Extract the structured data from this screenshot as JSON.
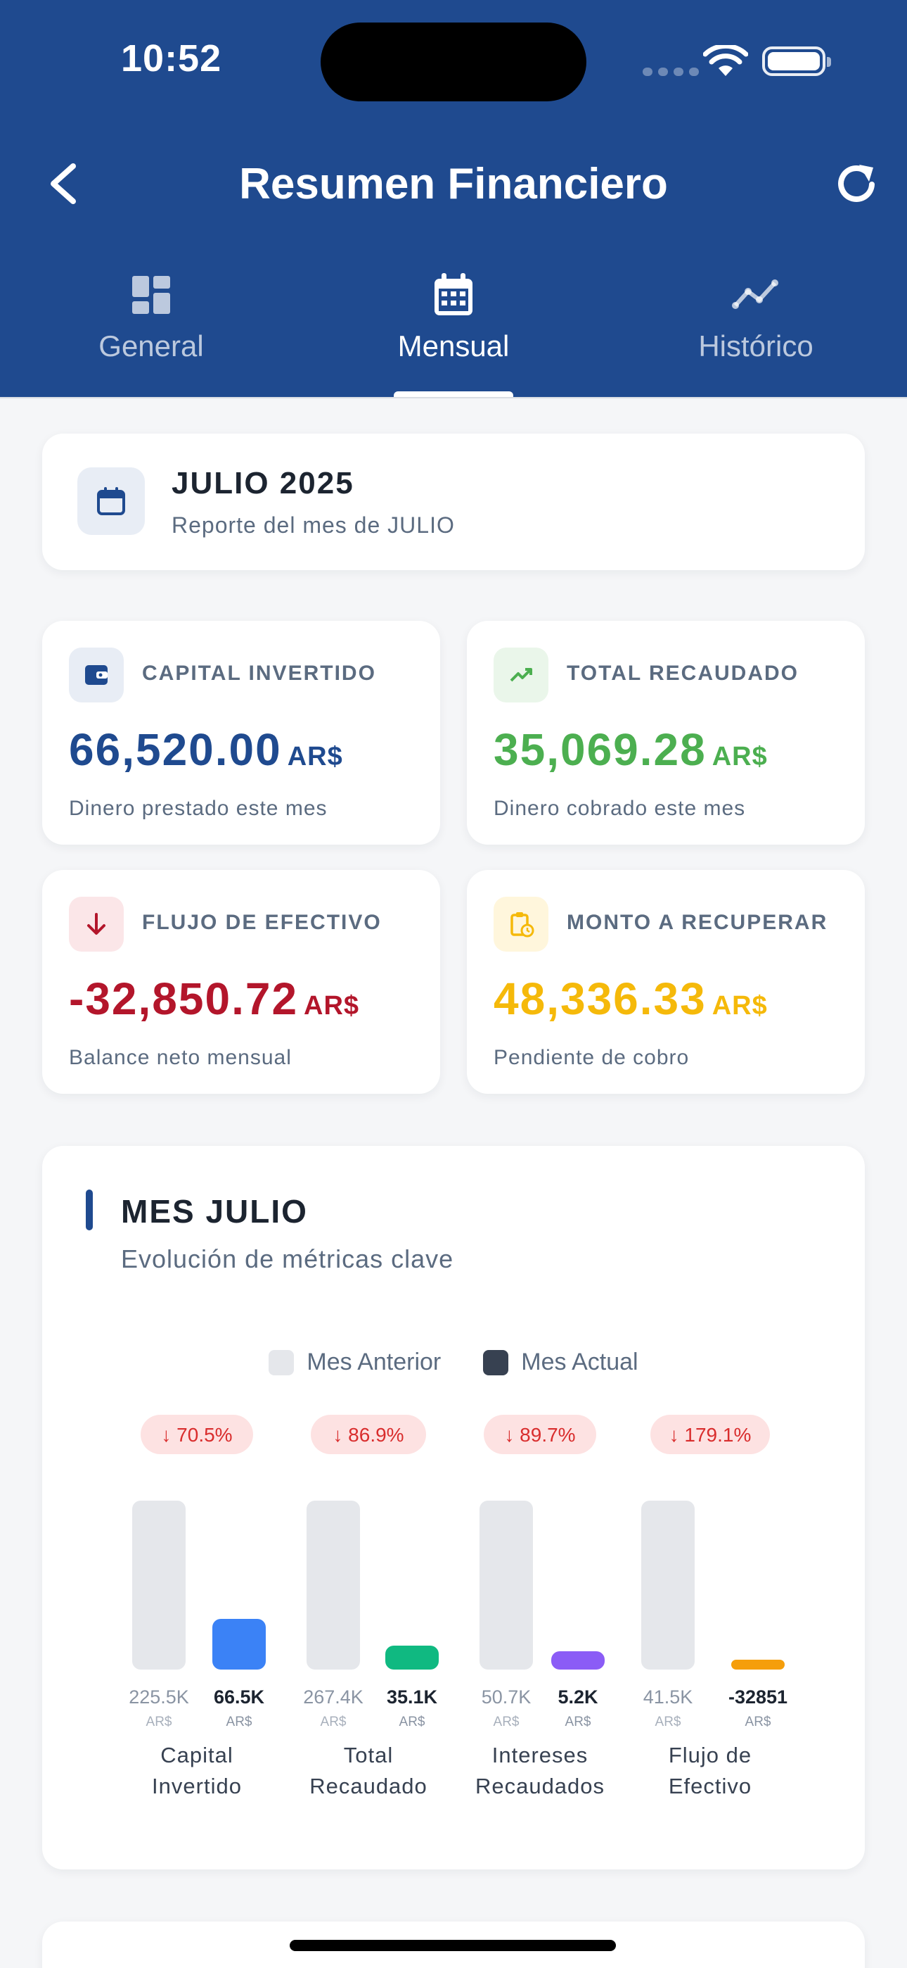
{
  "status": {
    "time": "10:52"
  },
  "header": {
    "title": "Resumen Financiero",
    "tabs": [
      {
        "label": "General",
        "icon": "dashboard-icon",
        "active": false
      },
      {
        "label": "Mensual",
        "icon": "calendar-icon",
        "active": true
      },
      {
        "label": "Histórico",
        "icon": "trend-line-icon",
        "active": false
      }
    ]
  },
  "month": {
    "title": "JULIO 2025",
    "subtitle": "Reporte del mes de JULIO"
  },
  "metrics": [
    {
      "label": "CAPITAL INVERTIDO",
      "value": "66,520.00",
      "currency": "AR$",
      "desc": "Dinero prestado este mes",
      "icon": "wallet-icon",
      "color": "#1f4a8f",
      "bg": "#e8edf5"
    },
    {
      "label": "TOTAL RECAUDADO",
      "value": "35,069.28",
      "currency": "AR$",
      "desc": "Dinero cobrado este mes",
      "icon": "trending-up-icon",
      "color": "#4caf50",
      "bg": "#eaf6ea"
    },
    {
      "label": "FLUJO DE EFECTIVO",
      "value": "-32,850.72",
      "currency": "AR$",
      "desc": "Balance neto mensual",
      "icon": "arrow-down-icon",
      "color": "#b3162b",
      "bg": "#fbe6e8"
    },
    {
      "label": "MONTO A RECUPERAR",
      "value": "48,336.33",
      "currency": "AR$",
      "desc": "Pendiente de cobro",
      "icon": "clipboard-clock-icon",
      "color": "#f5b90a",
      "bg": "#fff6dc"
    }
  ],
  "chart_section": {
    "title": "MES JULIO",
    "subtitle": "Evolución de métricas clave",
    "legend": [
      {
        "name": "Mes Anterior",
        "color": "#e5e7eb"
      },
      {
        "name": "Mes Actual",
        "color": "#374151"
      }
    ]
  },
  "chart_data": {
    "type": "bar",
    "categories": [
      "Capital Invertido",
      "Total Recaudado",
      "Intereses Recaudados",
      "Flujo de Efectivo"
    ],
    "category_lines": [
      [
        "Capital",
        "Invertido"
      ],
      [
        "Total",
        "Recaudado"
      ],
      [
        "Intereses",
        "Recaudados"
      ],
      [
        "Flujo de",
        "Efectivo"
      ]
    ],
    "series": [
      {
        "name": "Mes Anterior",
        "values": [
          225500,
          267400,
          50700,
          41500
        ],
        "labels": [
          "225.5K",
          "267.4K",
          "50.7K",
          "41.5K"
        ],
        "colors": [
          "#e5e7eb",
          "#e5e7eb",
          "#e5e7eb",
          "#e5e7eb"
        ]
      },
      {
        "name": "Mes Actual",
        "values": [
          66500,
          35100,
          5200,
          -32851
        ],
        "labels": [
          "66.5K",
          "35.1K",
          "5.2K",
          "-32851"
        ],
        "colors": [
          "#3b82f6",
          "#10b981",
          "#8b5cf6",
          "#f59e0b"
        ]
      }
    ],
    "unit": "AR$",
    "changes": [
      "↓ 70.5%",
      "↓ 86.9%",
      "↓ 89.7%",
      "↓ 179.1%"
    ]
  }
}
